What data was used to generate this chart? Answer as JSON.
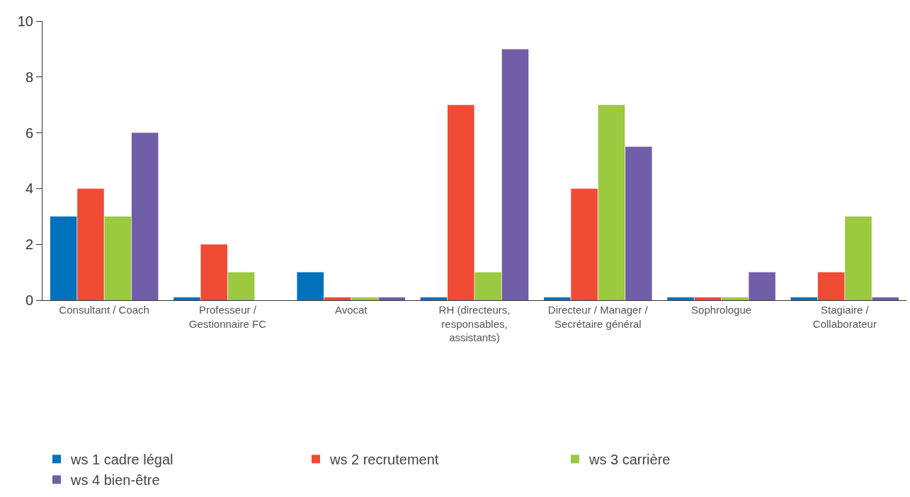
{
  "chart_data": {
    "type": "bar",
    "categories": [
      "Consultant / Coach",
      "Professeur / Gestionnaire FC",
      "Avocat",
      "RH (directeurs, responsables, assistants)",
      "Directeur / Manager / Secrétaire général",
      "Sophrologue",
      "Stagiaire / Collaborateur"
    ],
    "series": [
      {
        "name": "ws 1 cadre légal",
        "color": "#0072bc",
        "values": [
          3,
          0.1,
          1,
          0.1,
          0.1,
          0.1,
          0.1
        ]
      },
      {
        "name": "ws 2 recrutement",
        "color": "#ef4b35",
        "values": [
          4,
          2,
          0.1,
          7,
          4,
          0.1,
          1
        ]
      },
      {
        "name": "ws 3 carrière",
        "color": "#9bc93f",
        "values": [
          3,
          1,
          0.1,
          1,
          7,
          0.1,
          3
        ]
      },
      {
        "name": "ws 4 bien-être",
        "color": "#715ea8",
        "values": [
          6,
          0,
          0.1,
          9,
          5.5,
          1,
          0.1
        ]
      }
    ],
    "ylim": [
      0,
      10
    ],
    "yticks": [
      0,
      2,
      4,
      6,
      8,
      10
    ],
    "legend": "bottom"
  }
}
